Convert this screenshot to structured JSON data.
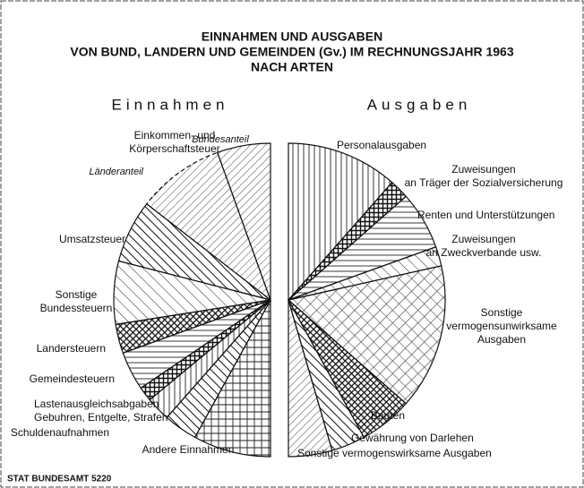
{
  "title": [
    "EINNAHMEN UND AUSGABEN",
    "VON BUND, LANDERN UND GEMEINDEN (Gv.) IM RECHNUNGSJAHR 1963",
    "NACH ARTEN"
  ],
  "source": "STAT BUNDESAMT 5220",
  "chart_data": [
    {
      "type": "pie",
      "title": "Einnahmen",
      "group_label": [
        "Einkommen- und",
        "Körperschaftsteuer"
      ],
      "categories": [
        [
          "Bundesanteil"
        ],
        [
          "Länderanteil"
        ],
        [
          "Umsatzsteuer"
        ],
        [
          "Sonstige",
          "Bundessteuern"
        ],
        [
          "Landersteuern"
        ],
        [
          "Gemeindesteuern"
        ],
        [
          "Lastenausgleichsabgaben"
        ],
        [
          "Gebuhren, Entgelte, Strafen"
        ],
        [
          "Schuldenaufnahmen"
        ],
        [
          "Andere Einnahmen"
        ]
      ],
      "values": [
        11,
        18,
        13,
        13,
        6,
        8,
        3,
        5,
        7,
        16
      ]
    },
    {
      "type": "pie",
      "title": "Ausgaben",
      "categories": [
        [
          "Personalausgaben"
        ],
        [
          "Zuweisungen",
          "an Träger der Sozialversicherung"
        ],
        [
          "Renten und Unterstützungen"
        ],
        [
          "Zuweisungen",
          "an Zweckverbande usw."
        ],
        [
          "Sonstige",
          "vermogensunwirksame",
          "Ausgaben"
        ],
        [
          "Bauten"
        ],
        [
          "Gewährung von Darlehen"
        ],
        [
          "Sonstige vermogenswirksame Ausgaben"
        ]
      ],
      "values": [
        23,
        4,
        12,
        4,
        30,
        11,
        7,
        9
      ]
    }
  ]
}
